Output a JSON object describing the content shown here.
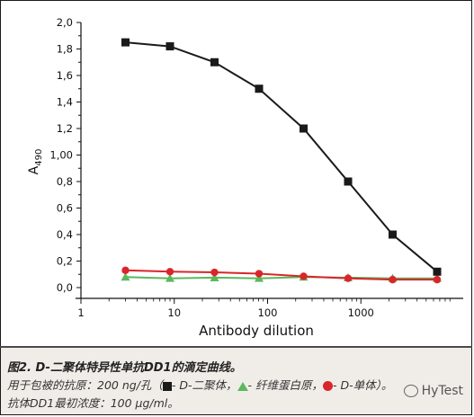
{
  "chart_data": {
    "type": "line",
    "xlabel": "Antibody dilution",
    "ylabel": "A490",
    "ylabel_main": "A",
    "ylabel_sub": "490",
    "x_scale": "log",
    "xlim": [
      1,
      10000
    ],
    "ylim": [
      0,
      2.0
    ],
    "x_ticks": [
      1,
      10,
      100,
      1000
    ],
    "x_tick_labels": [
      "1",
      "10",
      "100",
      "1000"
    ],
    "y_ticks": [
      0,
      0.2,
      0.4,
      0.6,
      0.8,
      1.0,
      1.2,
      1.4,
      1.6,
      1.8,
      2.0
    ],
    "y_tick_labels": [
      "0,0",
      "0,2",
      "0,4",
      "0,6",
      "0,8",
      "1,00",
      "1,2",
      "1,4",
      "1,6",
      "1,8",
      "2,0"
    ],
    "grid": false,
    "series": [
      {
        "name": "D-二聚体",
        "color": "#1a1a1a",
        "marker": "square",
        "x": [
          3,
          9,
          27,
          81,
          243,
          729,
          2187,
          6561
        ],
        "y": [
          1.85,
          1.82,
          1.7,
          1.5,
          1.2,
          0.8,
          0.4,
          0.12
        ]
      },
      {
        "name": "纤维蛋白原",
        "color": "#5cb85c",
        "marker": "triangle",
        "x": [
          3,
          9,
          27,
          81,
          243,
          729,
          2187,
          6561
        ],
        "y": [
          0.08,
          0.07,
          0.075,
          0.07,
          0.08,
          0.075,
          0.07,
          0.07
        ]
      },
      {
        "name": "D-单体",
        "color": "#d9262a",
        "marker": "circle",
        "x": [
          3,
          9,
          27,
          81,
          243,
          729,
          2187,
          6561
        ],
        "y": [
          0.13,
          0.12,
          0.115,
          0.105,
          0.085,
          0.07,
          0.06,
          0.06
        ]
      }
    ]
  },
  "caption": {
    "title": "图2. D-二聚体特异性单抗DD1的滴定曲线。",
    "line1_prefix": "用于包被的抗原：200 ng/孔（",
    "legend1": "- D-二聚体，",
    "legend2": "- 纤维蛋白原，",
    "legend3": "- D-单体）。",
    "line2": "抗体DD1最初浓度：100 µg/ml。"
  },
  "watermark": {
    "text": "HyTest"
  }
}
